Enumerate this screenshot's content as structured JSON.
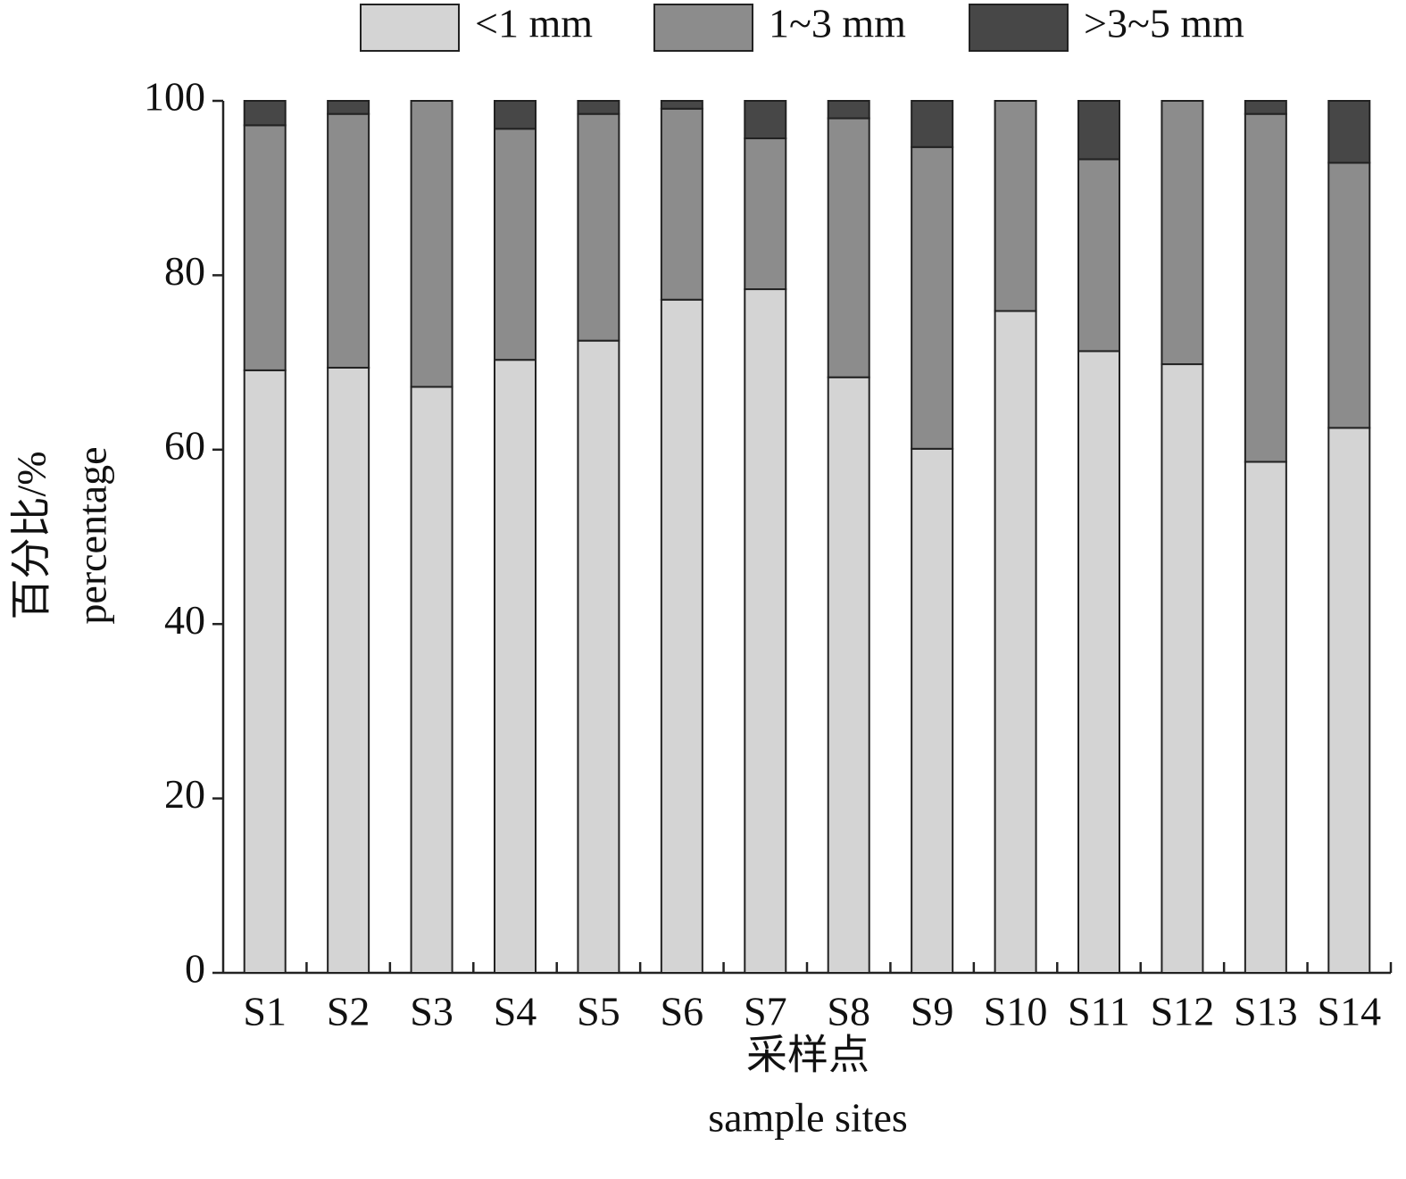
{
  "chart_data": {
    "type": "stacked_bar",
    "y_label": {
      "zh": "百分比/%",
      "en": "percentage"
    },
    "x_label": {
      "zh": "采样点",
      "en": "sample sites"
    },
    "categories": [
      "S1",
      "S2",
      "S3",
      "S4",
      "S5",
      "S6",
      "S7",
      "S8",
      "S9",
      "S10",
      "S11",
      "S12",
      "S13",
      "S14"
    ],
    "series": [
      {
        "name": "<1 mm",
        "color": "#d4d4d4",
        "values": [
          69.1,
          69.4,
          67.2,
          70.3,
          72.5,
          77.2,
          78.4,
          68.3,
          60.1,
          75.9,
          71.3,
          69.8,
          58.6,
          62.5
        ]
      },
      {
        "name": "1~3 mm",
        "color": "#8c8c8c",
        "values": [
          28.1,
          29.1,
          32.8,
          26.5,
          26.0,
          21.9,
          17.3,
          29.7,
          34.6,
          24.1,
          22.0,
          30.2,
          39.9,
          30.4
        ]
      },
      {
        "name": ">3~5 mm",
        "color": "#474747",
        "values": [
          2.8,
          1.5,
          0,
          3.2,
          1.5,
          0.9,
          4.3,
          2.0,
          5.3,
          0,
          6.7,
          0,
          1.5,
          7.1
        ]
      }
    ],
    "ylim": [
      0,
      100
    ],
    "yticks": [
      0,
      20,
      40,
      60,
      80,
      100
    ],
    "grid": false
  }
}
